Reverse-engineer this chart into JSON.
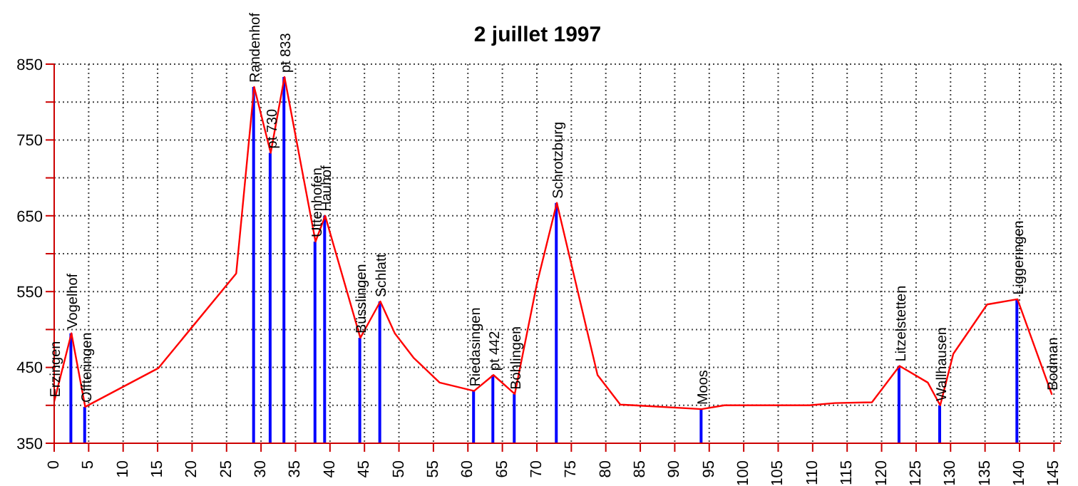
{
  "chart_data": {
    "type": "line",
    "title": "2 juillet 1997",
    "x": [
      0,
      2.5,
      4.5,
      15.1,
      26.4,
      29,
      31.4,
      33.4,
      37.9,
      39.3,
      44.4,
      47.3,
      49.4,
      52.1,
      55.9,
      60.9,
      63.7,
      66.8,
      70,
      72.9,
      78.8,
      82.1,
      84.1,
      93.9,
      97.2,
      109.5,
      113.2,
      118.6,
      122.6,
      126.7,
      128.5,
      130.4,
      135.3,
      139.7,
      144.7
    ],
    "series": [
      {
        "color": "#ff0000",
        "values": [
          405,
          495,
          398,
          449,
          574,
          820,
          733,
          833,
          616,
          650,
          489,
          537,
          495,
          463,
          430,
          419,
          440,
          415,
          560,
          667,
          440,
          401,
          400,
          395,
          400,
          400,
          403,
          404,
          452,
          430,
          400,
          468,
          533,
          540,
          414
        ]
      },
      {
        "type": "bar",
        "color": "#0000ff",
        "x": [
          2.5,
          4.5,
          29,
          31.4,
          33.4,
          37.9,
          39.3,
          44.4,
          47.3,
          60.9,
          63.7,
          66.8,
          72.9,
          93.9,
          122.6,
          128.5,
          139.7
        ],
        "values": [
          495,
          398,
          820,
          733,
          833,
          616,
          650,
          489,
          537,
          419,
          440,
          415,
          667,
          395,
          452,
          400,
          540
        ]
      }
    ],
    "xlim": [
      0,
      146
    ],
    "xticks": [
      0,
      5,
      10,
      15,
      20,
      25,
      30,
      35,
      40,
      45,
      50,
      55,
      60,
      65,
      70,
      75,
      80,
      85,
      90,
      95,
      100,
      105,
      110,
      115,
      120,
      125,
      130,
      135,
      140,
      145
    ],
    "ylim": [
      350,
      850
    ],
    "yticks": [
      350,
      {
        "value": 400,
        "label": null
      },
      450,
      {
        "value": 500,
        "label": null
      },
      550,
      {
        "value": 600,
        "label": null
      },
      650,
      {
        "value": 700,
        "label": null
      },
      750,
      {
        "value": 800,
        "label": null
      },
      850
    ],
    "grid": true,
    "legend": false,
    "marker": "none",
    "line_style": "solid",
    "annotations": [
      {
        "text": "Erzingen",
        "x": 0,
        "y": 405
      },
      {
        "text": "Vogelhof",
        "x": 2.5,
        "y": 495
      },
      {
        "text": "Offteringen",
        "x": 4.5,
        "y": 398
      },
      {
        "text": "Randenhof",
        "x": 29,
        "y": 820
      },
      {
        "text": "pt 730",
        "x": 31.4,
        "y": 733
      },
      {
        "text": "pt 833",
        "x": 33.4,
        "y": 833
      },
      {
        "text": "Uttenhofen",
        "x": 37.9,
        "y": 616
      },
      {
        "text": "Hauhof",
        "x": 39.3,
        "y": 650
      },
      {
        "text": "Büsslingen",
        "x": 44.4,
        "y": 489
      },
      {
        "text": "Schlatt",
        "x": 47.3,
        "y": 537
      },
      {
        "text": "Riedasingen",
        "x": 60.9,
        "y": 419
      },
      {
        "text": "pt 442",
        "x": 63.7,
        "y": 440
      },
      {
        "text": "Böhlingen",
        "x": 66.8,
        "y": 415
      },
      {
        "text": "Schrotzburg",
        "x": 72.9,
        "y": 667
      },
      {
        "text": "Moos",
        "x": 93.9,
        "y": 395
      },
      {
        "text": "Litzelstetten",
        "x": 122.6,
        "y": 452
      },
      {
        "text": "Wallhausen",
        "x": 128.5,
        "y": 400
      },
      {
        "text": "Liggeringen",
        "x": 139.7,
        "y": 540
      },
      {
        "text": "Bodman",
        "x": 144.7,
        "y": 414
      }
    ]
  }
}
